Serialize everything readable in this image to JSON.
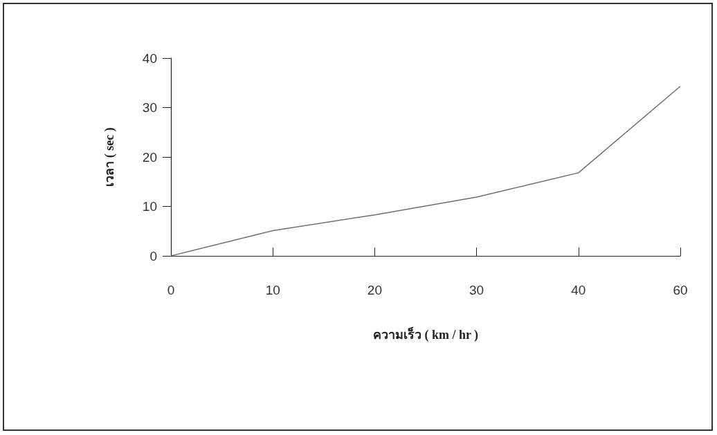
{
  "chart_data": {
    "type": "line",
    "xlabel": "ความเร็ว ( km / hr )",
    "ylabel": "เวลา ( sec )",
    "categories": [
      "0",
      "10",
      "20",
      "30",
      "40",
      "60"
    ],
    "series": [
      {
        "color": "#707070",
        "values": [
          0,
          5.1,
          8.3,
          11.9,
          16.8,
          34.3
        ]
      }
    ],
    "ylim": [
      0,
      40
    ],
    "yticks": [
      0,
      10,
      20,
      30,
      40
    ],
    "grid": false,
    "marker": "none",
    "line_style": "solid"
  }
}
